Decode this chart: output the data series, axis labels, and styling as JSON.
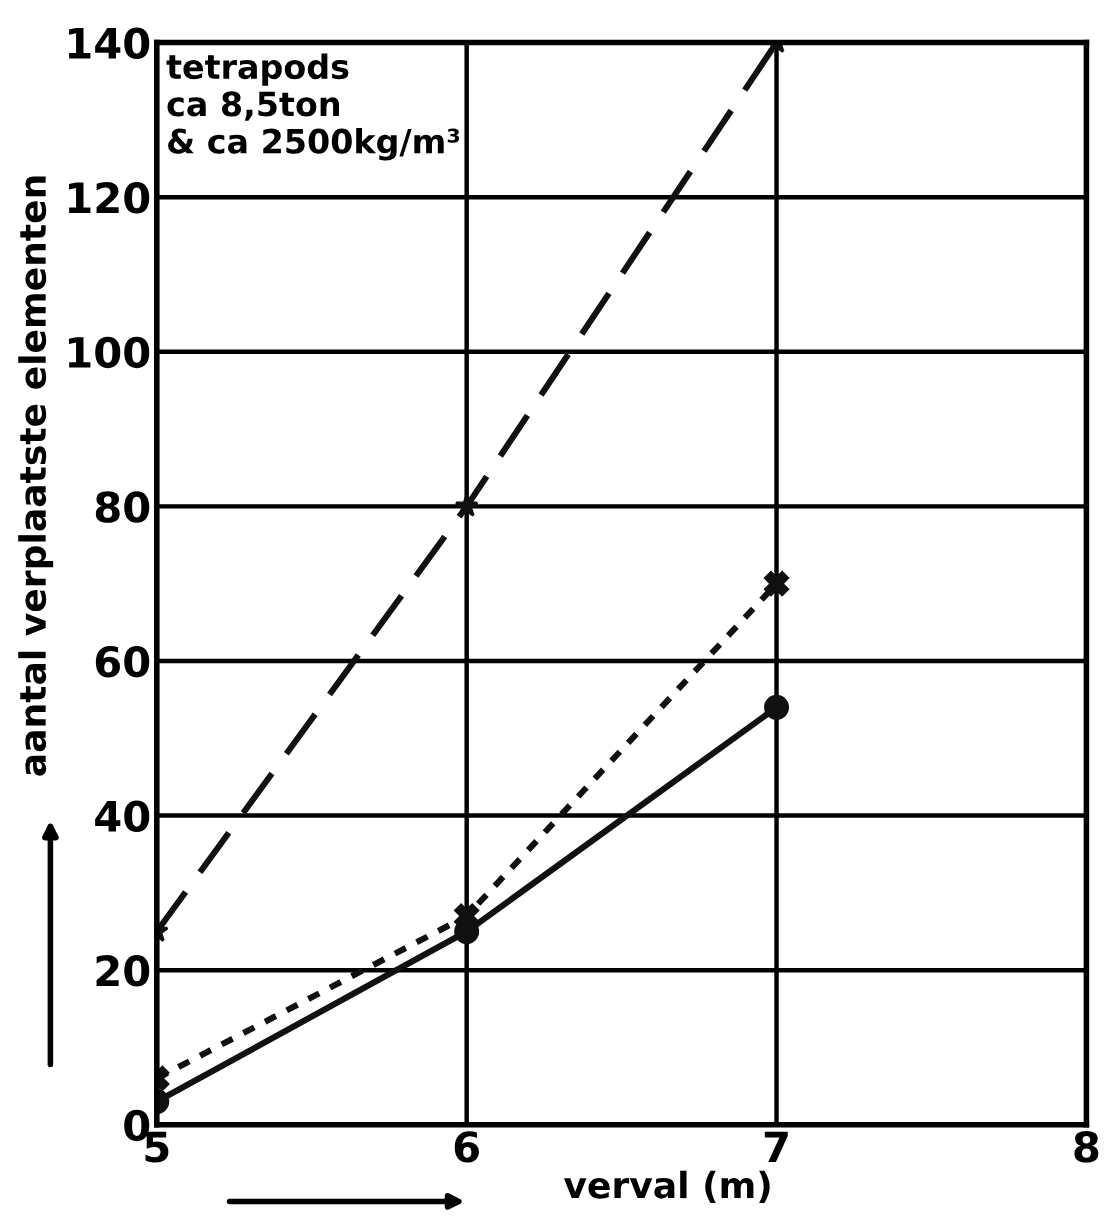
{
  "chart_data": {
    "type": "line",
    "xlabel": "verval (m)",
    "ylabel": "aantal verplaatste elementen",
    "annotations": [
      "tetrapods\nca 8,5ton\n& ca 2500kg/m³"
    ],
    "x": [
      5,
      6,
      7
    ],
    "series": [
      {
        "color": "#111111",
        "values": [
          25,
          80,
          140
        ],
        "line_style": "dashed",
        "marker": "star"
      },
      {
        "color": "#111111",
        "values": [
          6,
          27,
          70
        ],
        "line_style": "dotted",
        "marker": "cross"
      },
      {
        "color": "#111111",
        "values": [
          3,
          25,
          54
        ],
        "line_style": "solid",
        "marker": "circle"
      }
    ],
    "xlim": [
      5,
      8
    ],
    "xticks": [
      5,
      6,
      7,
      8
    ],
    "ylim": [
      0,
      140
    ],
    "yticks": [
      0,
      20,
      40,
      60,
      80,
      100,
      120,
      140
    ],
    "grid": true
  }
}
